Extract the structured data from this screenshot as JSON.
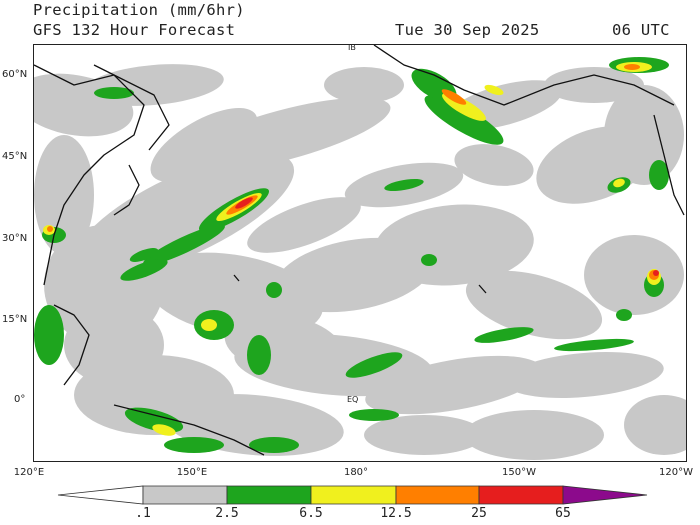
{
  "header": {
    "title": "Precipitation (mm/6hr)",
    "model_line": "GFS 132 Hour Forecast",
    "valid_date": "Tue 30 Sep 2025",
    "valid_time": "06 UTC"
  },
  "map": {
    "lat_labels": [
      "60°N",
      "45°N",
      "30°N",
      "15°N",
      "0°"
    ],
    "lon_labels": [
      "120°E",
      "150°E",
      "180°",
      "150°W",
      "120°W"
    ],
    "equator_tag": "EQ",
    "dateline_tag": "IB"
  },
  "legend": {
    "ticks": [
      ".1",
      "2.5",
      "6.5",
      "12.5",
      "25",
      "65"
    ],
    "colors": [
      "#ffffff",
      "#c8c8c8",
      "#1ea51e",
      "#f0f01e",
      "#ff7f00",
      "#e61e1e",
      "#8c0a8c"
    ]
  },
  "palette": {
    "light": "#c8c8c8",
    "green": "#1ea51e",
    "yellow": "#f0f01e",
    "orange": "#ff7f00",
    "red": "#e61e1e"
  }
}
